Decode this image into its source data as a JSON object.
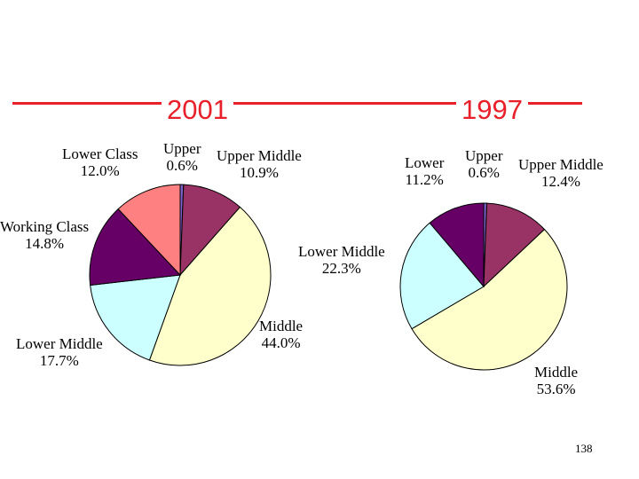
{
  "chart_data": [
    {
      "type": "pie",
      "title": "2001",
      "slices": [
        {
          "label": "Upper",
          "value": 0.6,
          "value_label": "0.6%",
          "color": "#7b5fc9"
        },
        {
          "label": "Upper Middle",
          "value": 10.9,
          "value_label": "10.9%",
          "color": "#993366"
        },
        {
          "label": "Middle",
          "value": 44.0,
          "value_label": "44.0%",
          "color": "#ffffcc"
        },
        {
          "label": "Lower Middle",
          "value": 17.7,
          "value_label": "17.7%",
          "color": "#ccffff"
        },
        {
          "label": "Working Class",
          "value": 14.8,
          "value_label": "14.8%",
          "color": "#660066"
        },
        {
          "label": "Lower Class",
          "value": 12.0,
          "value_label": "12.0%",
          "color": "#ff8080"
        }
      ]
    },
    {
      "type": "pie",
      "title": "1997",
      "slices": [
        {
          "label": "Upper",
          "value": 0.6,
          "value_label": "0.6%",
          "color": "#7b5fc9"
        },
        {
          "label": "Upper Middle",
          "value": 12.4,
          "value_label": "12.4%",
          "color": "#993366"
        },
        {
          "label": "Middle",
          "value": 53.6,
          "value_label": "53.6%",
          "color": "#ffffcc"
        },
        {
          "label": "Lower Middle",
          "value": 22.3,
          "value_label": "22.3%",
          "color": "#ccffff"
        },
        {
          "label": "Lower",
          "value": 11.2,
          "value_label": "11.2%",
          "color": "#660066"
        }
      ]
    }
  ],
  "page_number": "138",
  "accent_color": "#e8202a"
}
